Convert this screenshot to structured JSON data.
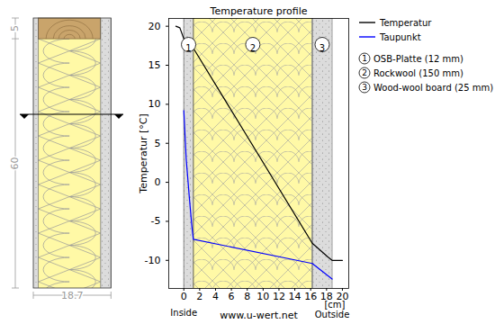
{
  "chart_data": {
    "type": "line",
    "title": "Temperature profile",
    "x_label": "[cm]",
    "y_label": "Temperatur [°C]",
    "xlim": [
      -1.9,
      20.8
    ],
    "xticks": [
      0,
      2,
      4,
      6,
      8,
      10,
      12,
      14,
      16,
      18,
      20
    ],
    "ylim": [
      -13.6,
      21
    ],
    "yticks": [
      -10,
      -5,
      0,
      5,
      10,
      15,
      20
    ],
    "grid": false,
    "legend": "right",
    "series": [
      {
        "name": "Temperatur",
        "color": "#000000",
        "x": [
          -1.0,
          -0.5,
          0,
          1.2,
          16.2,
          18.2,
          18.7,
          20
        ],
        "values": [
          20,
          19.8,
          18.4,
          17.2,
          -7.8,
          -9.6,
          -10,
          -10
        ]
      },
      {
        "name": "Taupunkt",
        "color": "#0000ff",
        "x": [
          0,
          0.3,
          0.7,
          1.0,
          1.2,
          16.2,
          18.7
        ],
        "values": [
          9.2,
          3.0,
          -2.0,
          -5.5,
          -7.3,
          -10.4,
          -12.4
        ]
      }
    ],
    "layers": [
      {
        "number": 1,
        "label": "OSB-Platte (12 mm)",
        "start": 0,
        "end": 1.2
      },
      {
        "number": 2,
        "label": "Rockwool (150 mm)",
        "start": 1.2,
        "end": 16.2
      },
      {
        "number": 3,
        "label": "Wood-wool board (25 mm)",
        "start": 16.2,
        "end": 18.7
      }
    ],
    "annotations": {
      "inside": "Inside",
      "outside": "Outside",
      "source": "www.u-wert.net"
    }
  },
  "wall_section": {
    "stud_height": 5,
    "spacing": 60,
    "thickness": 18.7
  }
}
